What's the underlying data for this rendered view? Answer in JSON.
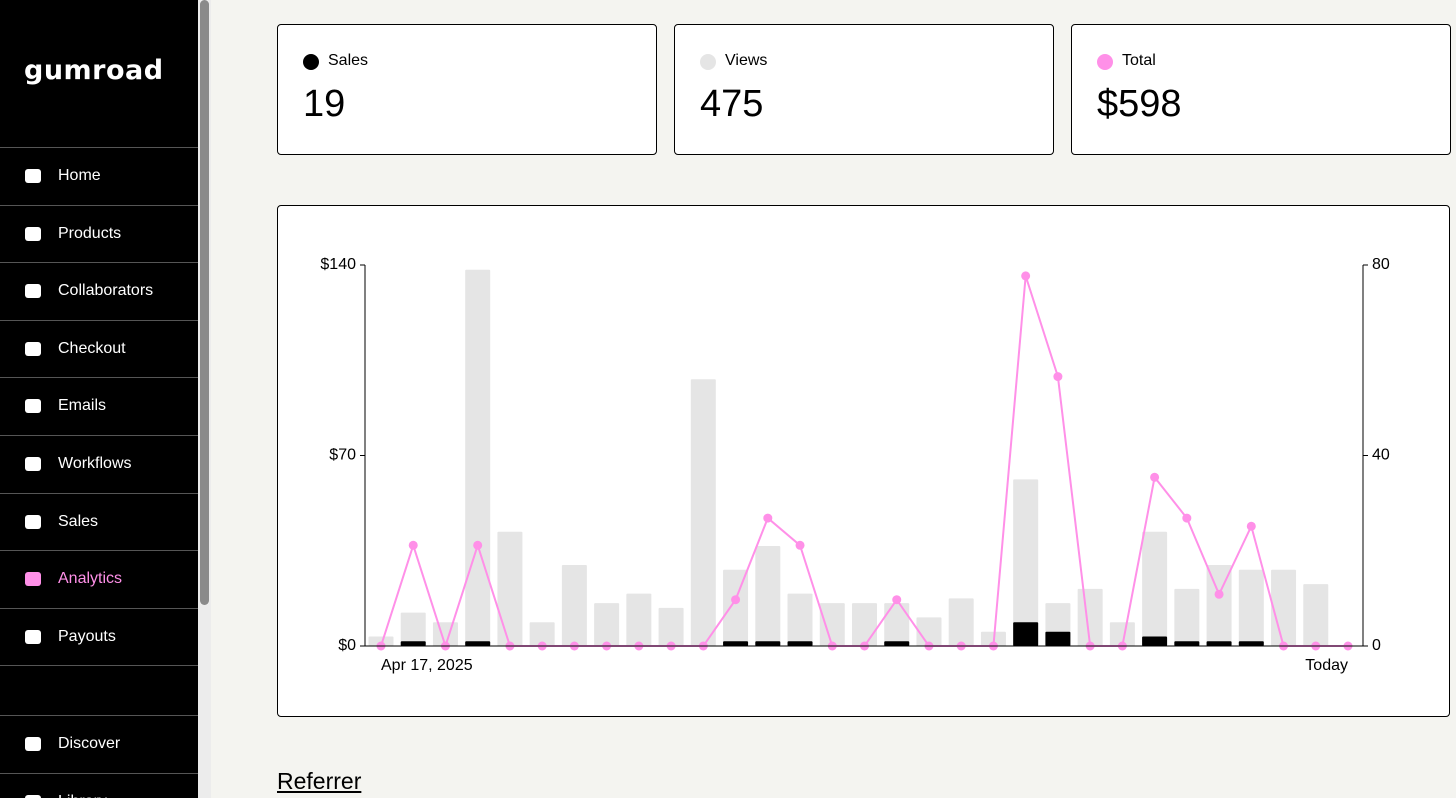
{
  "sidebar": {
    "logo": "gumroad",
    "nav": [
      "Home",
      "Products",
      "Collaborators",
      "Checkout",
      "Emails",
      "Workflows",
      "Sales",
      "Analytics",
      "Payouts"
    ],
    "active_index": 7,
    "bottom_nav": [
      "Discover",
      "Library"
    ]
  },
  "summary_values": [
    "19",
    "475",
    "$598"
  ],
  "chart_data": {
    "type": "bar",
    "categories": [
      "Apr 17, 2025",
      null,
      null,
      null,
      null,
      null,
      null,
      null,
      null,
      null,
      null,
      null,
      null,
      null,
      null,
      null,
      null,
      null,
      null,
      null,
      null,
      null,
      null,
      null,
      null,
      null,
      null,
      null,
      null,
      null,
      "Today"
    ],
    "series": [
      {
        "name": "Sales",
        "type": "bar",
        "axis": "y2",
        "color": "#000000",
        "values": [
          0,
          1,
          0,
          1,
          0,
          0,
          0,
          0,
          0,
          0,
          0,
          1,
          1,
          1,
          0,
          0,
          1,
          0,
          0,
          0,
          5,
          3,
          0,
          0,
          2,
          1,
          1,
          1,
          0,
          0,
          0
        ]
      },
      {
        "name": "Views",
        "type": "bar",
        "axis": "y2",
        "color": "#e5e5e5",
        "values": [
          2,
          7,
          5,
          79,
          24,
          5,
          17,
          9,
          11,
          8,
          56,
          16,
          21,
          11,
          9,
          9,
          9,
          6,
          10,
          3,
          35,
          9,
          12,
          5,
          24,
          12,
          17,
          16,
          16,
          13,
          0
        ]
      },
      {
        "name": "Total",
        "type": "line",
        "color": "#ff90e8",
        "values": [
          0,
          37,
          0,
          37,
          0,
          0,
          0,
          0,
          0,
          0,
          0,
          17,
          47,
          37,
          0,
          0,
          17,
          0,
          0,
          0,
          136,
          99,
          0,
          0,
          62,
          47,
          19,
          44,
          0,
          0,
          0
        ]
      }
    ],
    "ylim": [
      0,
      140
    ],
    "yticks": [
      {
        "value": 0,
        "label": "$0"
      },
      {
        "value": 70,
        "label": "$70"
      },
      {
        "value": 140,
        "label": "$140"
      }
    ],
    "y2lim": [
      0,
      80
    ],
    "y2ticks": [
      0,
      40,
      80
    ]
  },
  "section_heading": "Referrer"
}
